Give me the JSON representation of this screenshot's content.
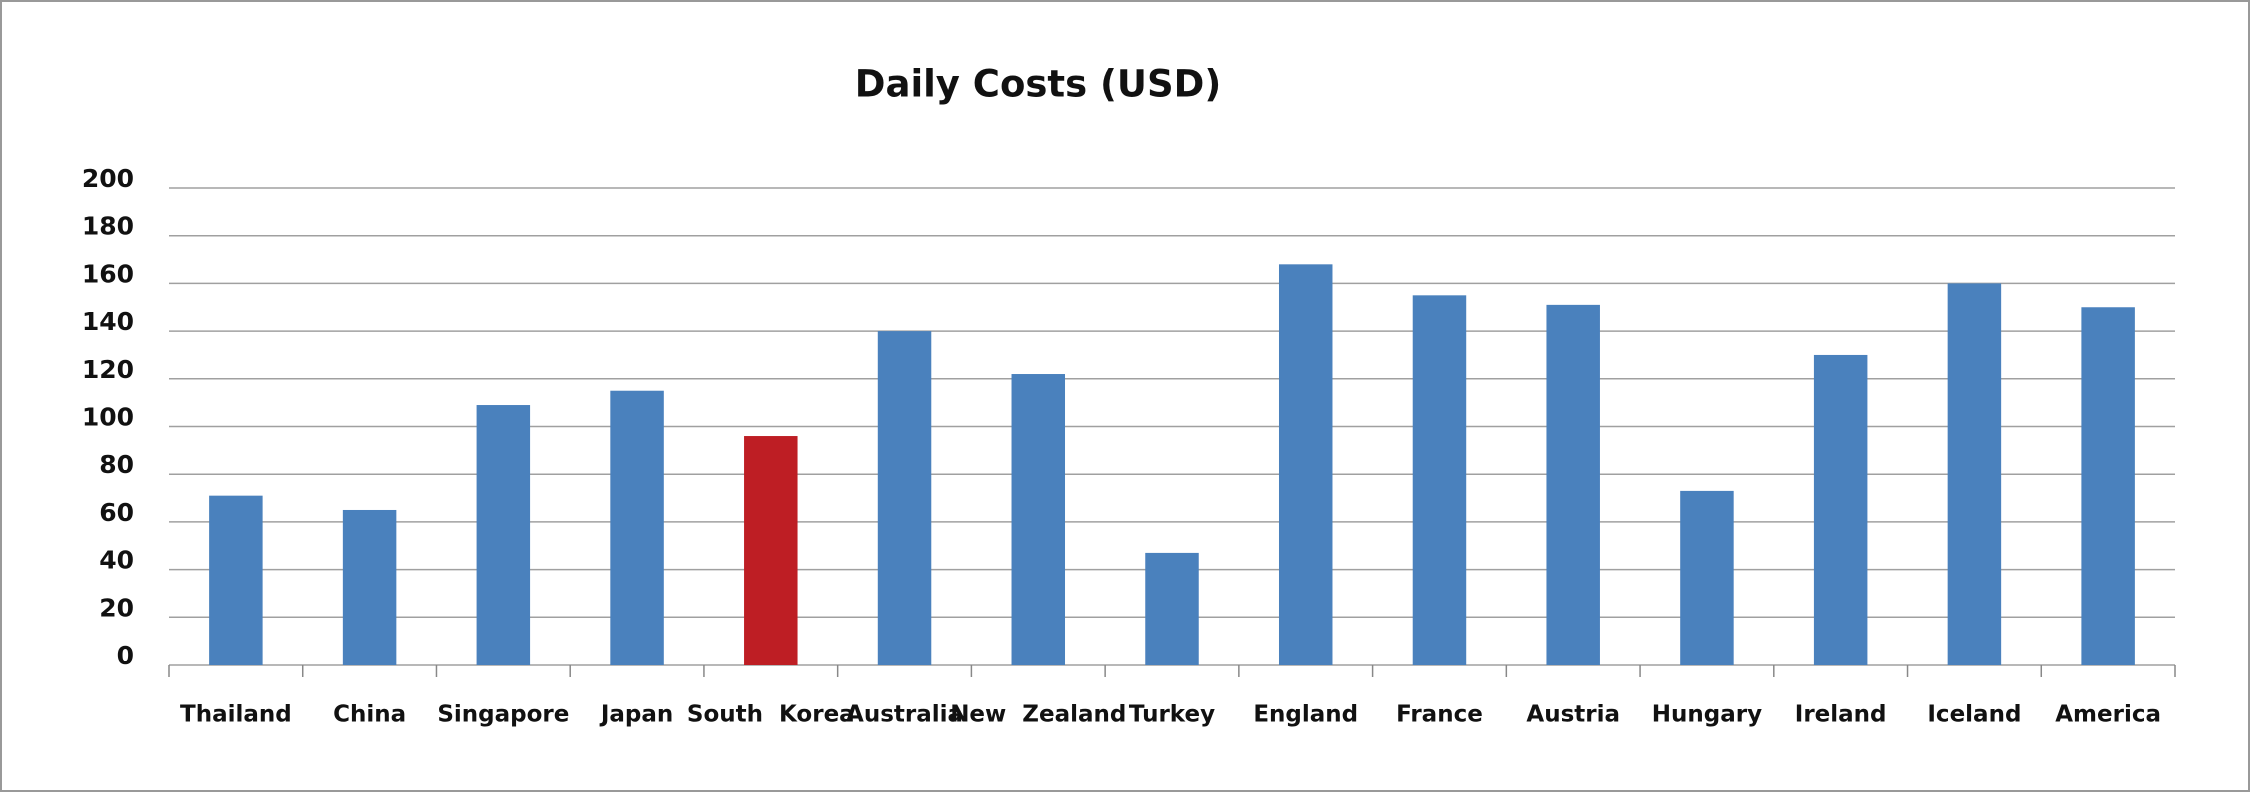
{
  "chart_data": {
    "type": "bar",
    "title": "Daily  Costs  (USD)",
    "categories": [
      "Thailand",
      "China",
      "Singapore",
      "Japan",
      "South  Korea",
      "Australia",
      "New  Zealand",
      "Turkey",
      "England",
      "France",
      "Austria",
      "Hungary",
      "Ireland",
      "Iceland",
      "America"
    ],
    "values": [
      71,
      65,
      109,
      115,
      96,
      140,
      122,
      47,
      168,
      155,
      151,
      73,
      130,
      160,
      150
    ],
    "colors": [
      "#4a81bd",
      "#4a81bd",
      "#4a81bd",
      "#4a81bd",
      "#be1e24",
      "#4a81bd",
      "#4a81bd",
      "#4a81bd",
      "#4a81bd",
      "#4a81bd",
      "#4a81bd",
      "#4a81bd",
      "#4a81bd",
      "#4a81bd",
      "#4a81bd"
    ],
    "ylim": [
      0,
      200
    ],
    "yticks": [
      0,
      20,
      40,
      60,
      80,
      100,
      120,
      140,
      160,
      180,
      200
    ],
    "grid": true
  }
}
